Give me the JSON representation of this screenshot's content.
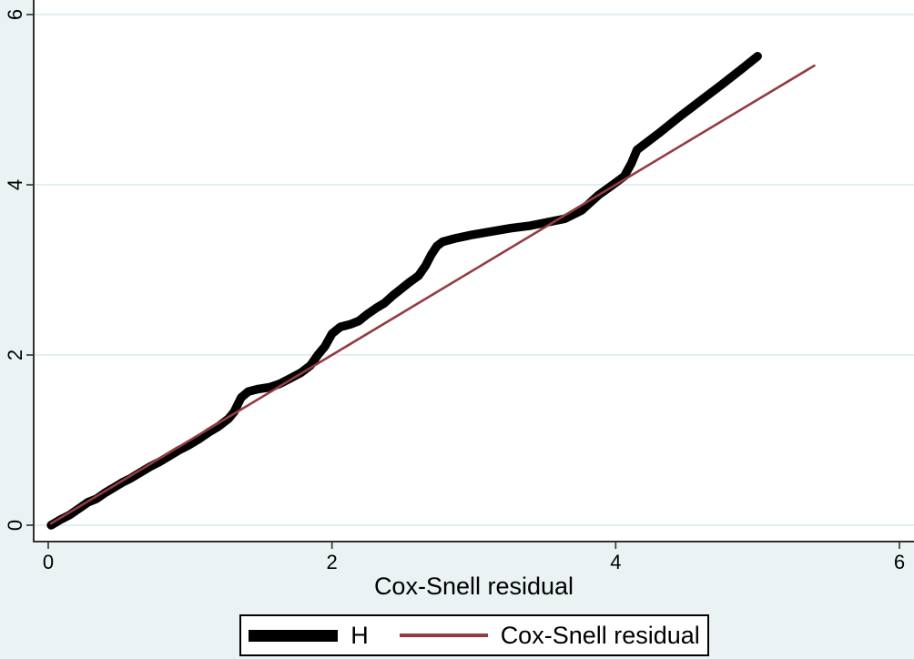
{
  "chart_data": {
    "type": "line",
    "title": "",
    "xlabel": "Cox-Snell residual",
    "ylabel": "",
    "xlim": [
      0,
      6
    ],
    "ylim": [
      0,
      6
    ],
    "x_ticks": [
      0,
      2,
      4,
      6
    ],
    "y_ticks": [
      0,
      2,
      4,
      6
    ],
    "grid": "horizontal-only",
    "legend_position": "bottom-center",
    "series": [
      {
        "name": "H",
        "color": "#000000",
        "line_width": 9.5,
        "points": [
          [
            0.02,
            0.0
          ],
          [
            0.08,
            0.06
          ],
          [
            0.15,
            0.12
          ],
          [
            0.22,
            0.2
          ],
          [
            0.28,
            0.27
          ],
          [
            0.34,
            0.31
          ],
          [
            0.4,
            0.38
          ],
          [
            0.46,
            0.44
          ],
          [
            0.52,
            0.5
          ],
          [
            0.58,
            0.55
          ],
          [
            0.65,
            0.62
          ],
          [
            0.72,
            0.69
          ],
          [
            0.78,
            0.74
          ],
          [
            0.85,
            0.81
          ],
          [
            0.92,
            0.88
          ],
          [
            0.99,
            0.94
          ],
          [
            1.06,
            1.01
          ],
          [
            1.13,
            1.09
          ],
          [
            1.2,
            1.16
          ],
          [
            1.27,
            1.25
          ],
          [
            1.31,
            1.33
          ],
          [
            1.36,
            1.5
          ],
          [
            1.41,
            1.57
          ],
          [
            1.48,
            1.6
          ],
          [
            1.56,
            1.62
          ],
          [
            1.63,
            1.66
          ],
          [
            1.7,
            1.72
          ],
          [
            1.78,
            1.79
          ],
          [
            1.85,
            1.88
          ],
          [
            1.9,
            2.0
          ],
          [
            1.95,
            2.1
          ],
          [
            2.0,
            2.25
          ],
          [
            2.06,
            2.33
          ],
          [
            2.13,
            2.36
          ],
          [
            2.19,
            2.4
          ],
          [
            2.25,
            2.48
          ],
          [
            2.31,
            2.55
          ],
          [
            2.37,
            2.61
          ],
          [
            2.43,
            2.7
          ],
          [
            2.49,
            2.78
          ],
          [
            2.55,
            2.86
          ],
          [
            2.61,
            2.93
          ],
          [
            2.66,
            3.05
          ],
          [
            2.7,
            3.18
          ],
          [
            2.74,
            3.28
          ],
          [
            2.78,
            3.33
          ],
          [
            2.87,
            3.37
          ],
          [
            2.98,
            3.41
          ],
          [
            3.12,
            3.45
          ],
          [
            3.26,
            3.49
          ],
          [
            3.4,
            3.52
          ],
          [
            3.52,
            3.56
          ],
          [
            3.64,
            3.6
          ],
          [
            3.76,
            3.7
          ],
          [
            3.88,
            3.88
          ],
          [
            3.98,
            4.0
          ],
          [
            4.06,
            4.1
          ],
          [
            4.11,
            4.25
          ],
          [
            4.15,
            4.41
          ],
          [
            4.3,
            4.6
          ],
          [
            4.45,
            4.8
          ],
          [
            4.6,
            4.99
          ],
          [
            4.75,
            5.18
          ],
          [
            4.88,
            5.35
          ],
          [
            5.0,
            5.51
          ]
        ]
      },
      {
        "name": "Cox-Snell residual",
        "color": "#943b42",
        "line_width": 2.6,
        "points": [
          [
            0.02,
            0.02
          ],
          [
            5.4,
            5.4
          ]
        ]
      }
    ],
    "colors": {
      "figure_background": "#eaf2f3",
      "plot_background": "#ffffff",
      "gridline": "#e4eef2",
      "axis": "#303030",
      "tick_label": "#000000"
    }
  },
  "legend": {
    "items": [
      {
        "label": "H"
      },
      {
        "label": "Cox-Snell residual"
      }
    ]
  }
}
